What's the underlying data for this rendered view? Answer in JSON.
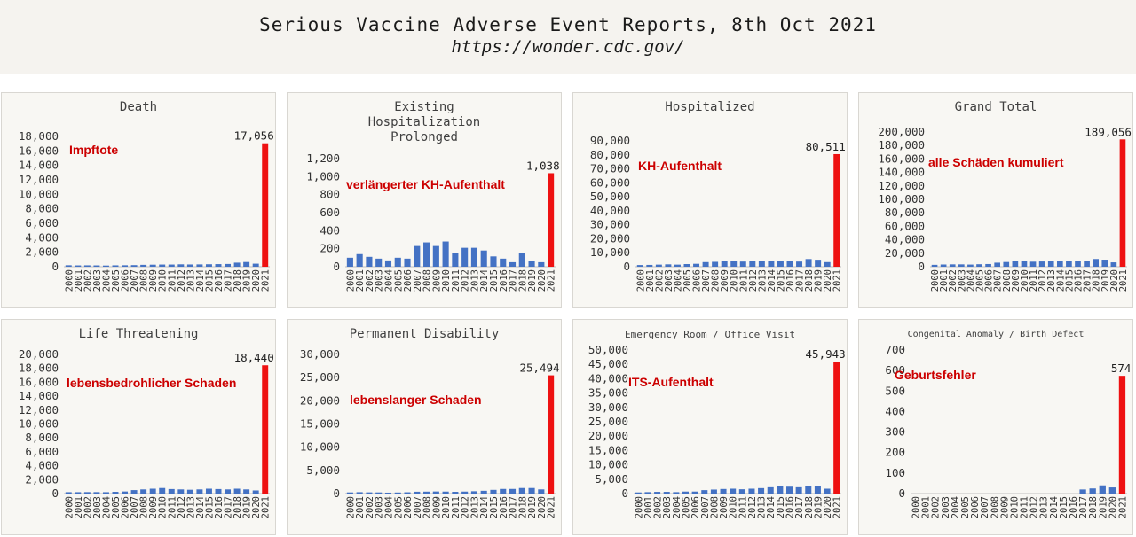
{
  "header": {
    "title": "Serious Vaccine Adverse Event Reports, 8th Oct 2021",
    "source": "https://wonder.cdc.gov/"
  },
  "colors": {
    "bar": "#4472c4",
    "highlight": "#ee1111",
    "annotation": "#cc0000"
  },
  "years": [
    "2000",
    "2001",
    "2002",
    "2003",
    "2004",
    "2005",
    "2006",
    "2007",
    "2008",
    "2009",
    "2010",
    "2011",
    "2012",
    "2013",
    "2014",
    "2015",
    "2016",
    "2017",
    "2018",
    "2019",
    "2020",
    "2021"
  ],
  "chart_data": [
    {
      "id": "death",
      "type": "bar",
      "title": [
        "Death"
      ],
      "annotation": "Impftote",
      "ylim": [
        0,
        18000
      ],
      "yticks": [
        0,
        2000,
        4000,
        6000,
        8000,
        10000,
        12000,
        14000,
        16000,
        18000
      ],
      "values": [
        200,
        180,
        190,
        180,
        160,
        190,
        200,
        220,
        260,
        280,
        300,
        300,
        330,
        310,
        320,
        340,
        360,
        380,
        560,
        650,
        420,
        17056
      ],
      "value_label": "17,056"
    },
    {
      "id": "hospitalization-prolonged",
      "type": "bar",
      "title": [
        "Existing",
        "Hospitalization",
        "Prolonged"
      ],
      "annotation": "verlängerter KH-Aufenthalt",
      "ylim": [
        0,
        1200
      ],
      "yticks": [
        0,
        200,
        400,
        600,
        800,
        1000,
        1200
      ],
      "values": [
        100,
        140,
        110,
        90,
        70,
        100,
        90,
        230,
        270,
        230,
        280,
        150,
        210,
        210,
        180,
        115,
        90,
        50,
        150,
        60,
        50,
        1038
      ],
      "value_label": "1,038"
    },
    {
      "id": "hospitalized",
      "type": "bar",
      "title": [
        "Hospitalized"
      ],
      "annotation": "KH-Aufenthalt",
      "ylim": [
        0,
        90000
      ],
      "yticks": [
        0,
        10000,
        20000,
        30000,
        40000,
        50000,
        60000,
        70000,
        80000,
        90000
      ],
      "values": [
        1200,
        1300,
        1500,
        1700,
        1500,
        1900,
        2100,
        3300,
        3500,
        3900,
        4000,
        3700,
        3900,
        4100,
        4200,
        4100,
        3800,
        3700,
        5500,
        5000,
        3300,
        80511
      ],
      "value_label": "80,511"
    },
    {
      "id": "grand-total",
      "type": "bar",
      "title": [
        "Grand Total"
      ],
      "annotation": "alle Schäden kumuliert",
      "ylim": [
        0,
        200000
      ],
      "yticks": [
        0,
        20000,
        40000,
        60000,
        80000,
        100000,
        120000,
        140000,
        160000,
        180000,
        200000
      ],
      "values": [
        2800,
        3300,
        3500,
        3500,
        3200,
        3700,
        4000,
        6000,
        7000,
        8000,
        8500,
        7500,
        7800,
        8000,
        8500,
        8800,
        9200,
        9000,
        11500,
        10500,
        6500,
        189056
      ],
      "value_label": "189,056"
    },
    {
      "id": "life-threatening",
      "type": "bar",
      "title": [
        "Life Threatening"
      ],
      "annotation": "lebensbedrohlicher Schaden",
      "ylim": [
        0,
        20000
      ],
      "yticks": [
        0,
        2000,
        4000,
        6000,
        8000,
        10000,
        12000,
        14000,
        16000,
        18000,
        20000
      ],
      "values": [
        200,
        200,
        210,
        210,
        200,
        250,
        300,
        500,
        600,
        700,
        800,
        650,
        600,
        550,
        600,
        700,
        650,
        600,
        700,
        600,
        450,
        18440
      ],
      "value_label": "18,440"
    },
    {
      "id": "permanent-disability",
      "type": "bar",
      "title": [
        "Permanent Disability"
      ],
      "annotation": "lebenslanger Schaden",
      "ylim": [
        0,
        30000
      ],
      "yticks": [
        0,
        5000,
        10000,
        15000,
        20000,
        25000,
        30000
      ],
      "values": [
        250,
        300,
        260,
        250,
        200,
        230,
        280,
        400,
        420,
        450,
        430,
        380,
        430,
        500,
        600,
        800,
        1000,
        1000,
        1200,
        1200,
        900,
        25494
      ],
      "value_label": "25,494"
    },
    {
      "id": "emergency-room",
      "type": "bar",
      "title": [
        "Emergency Room / Office Visit"
      ],
      "annotation": "ITS-Aufenthalt",
      "ylim": [
        0,
        50000
      ],
      "yticks": [
        0,
        5000,
        10000,
        15000,
        20000,
        25000,
        30000,
        35000,
        40000,
        45000,
        50000
      ],
      "values": [
        400,
        500,
        600,
        600,
        500,
        700,
        700,
        1200,
        1400,
        1600,
        1700,
        1500,
        1700,
        1900,
        2200,
        2600,
        2400,
        2200,
        2700,
        2500,
        1700,
        45943
      ],
      "value_label": "45,943"
    },
    {
      "id": "birth-defect",
      "type": "bar",
      "title": [
        "Congenital Anomaly / Birth Defect"
      ],
      "annotation": "Geburtsfehler",
      "ylim": [
        0,
        700
      ],
      "yticks": [
        0,
        100,
        200,
        300,
        400,
        500,
        600,
        700
      ],
      "values": [
        0,
        0,
        0,
        0,
        0,
        0,
        0,
        0,
        0,
        0,
        0,
        0,
        0,
        0,
        0,
        0,
        0,
        20,
        25,
        40,
        30,
        574
      ],
      "value_label": "574"
    }
  ]
}
